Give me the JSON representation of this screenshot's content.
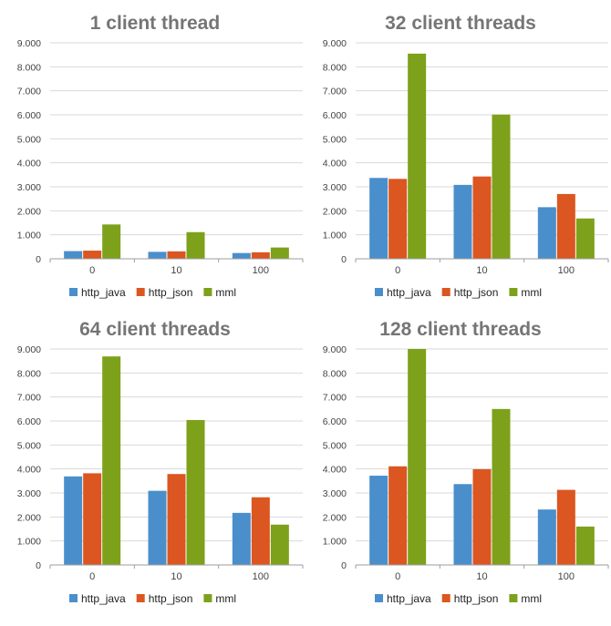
{
  "chart_data": [
    {
      "type": "bar",
      "title": "1 client thread",
      "categories": [
        "0",
        "10",
        "100"
      ],
      "ylim": [
        0,
        9000
      ],
      "yticks": [
        0,
        1000,
        2000,
        3000,
        4000,
        5000,
        6000,
        7000,
        8000,
        9000
      ],
      "ytick_labels": [
        "0",
        "1.000",
        "2.000",
        "3.000",
        "4.000",
        "5.000",
        "6.000",
        "7.000",
        "8.000",
        "9.000"
      ],
      "grid": true,
      "legend": "bottom",
      "series": [
        {
          "name": "http_java",
          "color": "#4a8fcb",
          "values": [
            320,
            290,
            240
          ]
        },
        {
          "name": "http_json",
          "color": "#db5620",
          "values": [
            340,
            310,
            270
          ]
        },
        {
          "name": "mml",
          "color": "#7da11a",
          "values": [
            1430,
            1110,
            470
          ]
        }
      ]
    },
    {
      "type": "bar",
      "title": "32 client threads",
      "categories": [
        "0",
        "10",
        "100"
      ],
      "ylim": [
        0,
        9000
      ],
      "yticks": [
        0,
        1000,
        2000,
        3000,
        4000,
        5000,
        6000,
        7000,
        8000,
        9000
      ],
      "ytick_labels": [
        "0",
        "1.000",
        "2.000",
        "3.000",
        "4.000",
        "5.000",
        "6.000",
        "7.000",
        "8.000",
        "9.000"
      ],
      "grid": true,
      "legend": "bottom",
      "series": [
        {
          "name": "http_java",
          "color": "#4a8fcb",
          "values": [
            3370,
            3080,
            2150
          ]
        },
        {
          "name": "http_json",
          "color": "#db5620",
          "values": [
            3330,
            3430,
            2700
          ]
        },
        {
          "name": "mml",
          "color": "#7da11a",
          "values": [
            8550,
            6010,
            1680
          ]
        }
      ]
    },
    {
      "type": "bar",
      "title": "64 client threads",
      "categories": [
        "0",
        "10",
        "100"
      ],
      "ylim": [
        0,
        9000
      ],
      "yticks": [
        0,
        1000,
        2000,
        3000,
        4000,
        5000,
        6000,
        7000,
        8000,
        9000
      ],
      "ytick_labels": [
        "0",
        "1.000",
        "2.000",
        "3.000",
        "4.000",
        "5.000",
        "6.000",
        "7.000",
        "8.000",
        "9.000"
      ],
      "grid": true,
      "legend": "bottom",
      "series": [
        {
          "name": "http_java",
          "color": "#4a8fcb",
          "values": [
            3690,
            3090,
            2170
          ]
        },
        {
          "name": "http_json",
          "color": "#db5620",
          "values": [
            3820,
            3790,
            2820
          ]
        },
        {
          "name": "mml",
          "color": "#7da11a",
          "values": [
            8690,
            6040,
            1680
          ]
        }
      ]
    },
    {
      "type": "bar",
      "title": "128 client threads",
      "categories": [
        "0",
        "10",
        "100"
      ],
      "ylim": [
        0,
        9000
      ],
      "yticks": [
        0,
        1000,
        2000,
        3000,
        4000,
        5000,
        6000,
        7000,
        8000,
        9000
      ],
      "ytick_labels": [
        "0",
        "1.000",
        "2.000",
        "3.000",
        "4.000",
        "5.000",
        "6.000",
        "7.000",
        "8.000",
        "9.000"
      ],
      "grid": true,
      "legend": "bottom",
      "series": [
        {
          "name": "http_java",
          "color": "#4a8fcb",
          "values": [
            3720,
            3370,
            2310
          ]
        },
        {
          "name": "http_json",
          "color": "#db5620",
          "values": [
            4110,
            3990,
            3130
          ]
        },
        {
          "name": "mml",
          "color": "#7da11a",
          "values": [
            9000,
            6500,
            1600
          ]
        }
      ]
    }
  ]
}
